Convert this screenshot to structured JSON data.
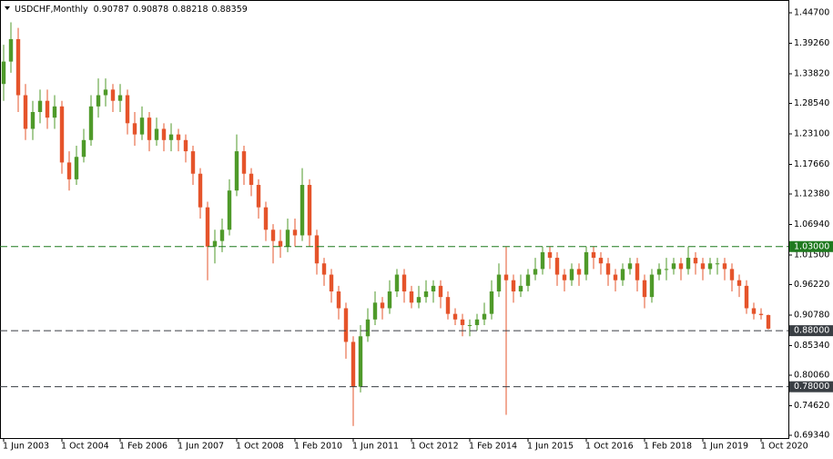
{
  "chart_data": {
    "type": "candlestick",
    "header": {
      "symbol": "USDCHF,Monthly",
      "open": 0.90787,
      "high": 0.90878,
      "low": 0.88218,
      "close": 0.88359
    },
    "up_color": "#4f9a2a",
    "down_color": "#e5542b",
    "xlim": [
      -1,
      215.5
    ],
    "xticks": [
      {
        "value": 0,
        "label": "1 Jun 2003"
      },
      {
        "value": 16,
        "label": "1 Oct 2004"
      },
      {
        "value": 32,
        "label": "1 Feb 2006"
      },
      {
        "value": 48,
        "label": "1 Jun 2007"
      },
      {
        "value": 64,
        "label": "1 Oct 2008"
      },
      {
        "value": 80,
        "label": "1 Feb 2010"
      },
      {
        "value": 96,
        "label": "1 Jun 2011"
      },
      {
        "value": 112,
        "label": "1 Oct 2012"
      },
      {
        "value": 128,
        "label": "1 Feb 2014"
      },
      {
        "value": 144,
        "label": "1 Jun 2015"
      },
      {
        "value": 160,
        "label": "1 Oct 2016"
      },
      {
        "value": 176,
        "label": "1 Feb 2018"
      },
      {
        "value": 192,
        "label": "1 Jun 2019"
      },
      {
        "value": 208,
        "label": "1 Oct 2020"
      }
    ],
    "ylim": [
      0.6885,
      1.4698
    ],
    "yticks": [
      {
        "value": 1.447,
        "label": "1.44700"
      },
      {
        "value": 1.3926,
        "label": "1.39260"
      },
      {
        "value": 1.3382,
        "label": "1.33820"
      },
      {
        "value": 1.2854,
        "label": "1.28540"
      },
      {
        "value": 1.231,
        "label": "1.23100"
      },
      {
        "value": 1.1766,
        "label": "1.17660"
      },
      {
        "value": 1.1238,
        "label": "1.12380"
      },
      {
        "value": 1.0694,
        "label": "1.06940"
      },
      {
        "value": 1.015,
        "label": "1.01500"
      },
      {
        "value": 0.9622,
        "label": "0.96220"
      },
      {
        "value": 0.9078,
        "label": "0.90780"
      },
      {
        "value": 0.8534,
        "label": "0.85340"
      },
      {
        "value": 0.8006,
        "label": "0.80060"
      },
      {
        "value": 0.7462,
        "label": "0.74620"
      },
      {
        "value": 0.6934,
        "label": "0.69340"
      }
    ],
    "levels": [
      {
        "value": 1.03,
        "label": "1.03000",
        "color": "#1f7a1f"
      },
      {
        "value": 0.88,
        "label": "0.88000",
        "color": "#3a3f44"
      },
      {
        "value": 0.78,
        "label": "0.78000",
        "color": "#3a3f44"
      }
    ],
    "candles": {
      "x": [
        0,
        2,
        4,
        6,
        8,
        10,
        12,
        14,
        16,
        18,
        20,
        22,
        24,
        26,
        28,
        30,
        32,
        34,
        36,
        38,
        40,
        42,
        44,
        46,
        48,
        50,
        52,
        54,
        56,
        58,
        60,
        62,
        64,
        66,
        68,
        70,
        72,
        74,
        76,
        78,
        80,
        82,
        84,
        86,
        88,
        90,
        92,
        94,
        96,
        98,
        100,
        102,
        104,
        106,
        108,
        110,
        112,
        114,
        116,
        118,
        120,
        122,
        124,
        126,
        128,
        130,
        132,
        134,
        136,
        138,
        140,
        142,
        144,
        146,
        148,
        150,
        152,
        154,
        156,
        158,
        160,
        162,
        164,
        166,
        168,
        170,
        172,
        174,
        176,
        178,
        180,
        182,
        184,
        186,
        188,
        190,
        192,
        194,
        196,
        198,
        200,
        202,
        204,
        206,
        208,
        210
      ],
      "open": [
        1.32,
        1.36,
        1.4,
        1.3,
        1.24,
        1.27,
        1.29,
        1.26,
        1.28,
        1.18,
        1.15,
        1.19,
        1.22,
        1.28,
        1.3,
        1.31,
        1.29,
        1.3,
        1.25,
        1.23,
        1.26,
        1.22,
        1.24,
        1.22,
        1.23,
        1.22,
        1.2,
        1.16,
        1.1,
        1.03,
        1.04,
        1.06,
        1.13,
        1.2,
        1.16,
        1.14,
        1.1,
        1.06,
        1.04,
        1.03,
        1.06,
        1.05,
        1.14,
        1.05,
        1.0,
        0.98,
        0.95,
        0.92,
        0.86,
        0.78,
        0.87,
        0.9,
        0.93,
        0.92,
        0.95,
        0.98,
        0.95,
        0.93,
        0.94,
        0.95,
        0.96,
        0.94,
        0.91,
        0.9,
        0.89,
        0.89,
        0.9,
        0.91,
        0.95,
        0.98,
        0.97,
        0.95,
        0.96,
        0.98,
        0.99,
        1.02,
        1.01,
        0.98,
        0.97,
        0.99,
        0.98,
        1.02,
        1.01,
        1.0,
        0.98,
        0.97,
        0.99,
        1.0,
        0.97,
        0.94,
        0.98,
        0.99,
        0.99,
        1.0,
        0.99,
        1.01,
        1.0,
        0.99,
        1.0,
        1.0,
        0.99,
        0.97,
        0.96,
        0.92,
        0.91,
        0.90787
      ],
      "high": [
        1.39,
        1.43,
        1.42,
        1.32,
        1.29,
        1.31,
        1.31,
        1.3,
        1.29,
        1.2,
        1.21,
        1.24,
        1.3,
        1.33,
        1.33,
        1.32,
        1.32,
        1.31,
        1.27,
        1.28,
        1.27,
        1.26,
        1.25,
        1.25,
        1.24,
        1.23,
        1.21,
        1.17,
        1.11,
        1.06,
        1.08,
        1.15,
        1.23,
        1.21,
        1.17,
        1.15,
        1.11,
        1.07,
        1.06,
        1.08,
        1.08,
        1.17,
        1.15,
        1.06,
        1.01,
        0.99,
        0.96,
        0.93,
        0.87,
        0.89,
        0.92,
        0.95,
        0.94,
        0.97,
        0.99,
        0.99,
        0.96,
        0.96,
        0.97,
        0.97,
        0.97,
        0.95,
        0.92,
        0.91,
        0.9,
        0.91,
        0.93,
        0.97,
        1.0,
        1.03,
        0.98,
        0.98,
        0.99,
        1.01,
        1.03,
        1.03,
        1.02,
        0.99,
        1.0,
        1.0,
        1.03,
        1.03,
        1.02,
        1.01,
        0.99,
        1.0,
        1.01,
        1.01,
        0.98,
        0.99,
        1.0,
        1.01,
        1.01,
        1.01,
        1.03,
        1.02,
        1.01,
        1.01,
        1.01,
        1.01,
        1.0,
        0.98,
        0.97,
        0.93,
        0.92,
        0.90878
      ],
      "low": [
        1.29,
        1.34,
        1.27,
        1.22,
        1.22,
        1.25,
        1.24,
        1.24,
        1.16,
        1.13,
        1.14,
        1.18,
        1.21,
        1.26,
        1.28,
        1.27,
        1.27,
        1.23,
        1.21,
        1.22,
        1.2,
        1.21,
        1.2,
        1.2,
        1.2,
        1.18,
        1.14,
        1.08,
        0.97,
        1.0,
        1.02,
        1.05,
        1.12,
        1.14,
        1.12,
        1.08,
        1.04,
        1.0,
        1.01,
        1.02,
        1.03,
        1.04,
        1.03,
        0.98,
        0.96,
        0.93,
        0.9,
        0.83,
        0.71,
        0.77,
        0.86,
        0.89,
        0.9,
        0.91,
        0.94,
        0.93,
        0.92,
        0.92,
        0.93,
        0.93,
        0.92,
        0.9,
        0.89,
        0.87,
        0.87,
        0.88,
        0.89,
        0.9,
        0.94,
        0.73,
        0.93,
        0.94,
        0.95,
        0.97,
        0.98,
        0.99,
        0.96,
        0.95,
        0.96,
        0.96,
        0.97,
        0.99,
        0.98,
        0.96,
        0.95,
        0.96,
        0.98,
        0.95,
        0.92,
        0.93,
        0.97,
        0.97,
        0.98,
        0.97,
        0.98,
        0.98,
        0.97,
        0.98,
        0.98,
        0.97,
        0.95,
        0.94,
        0.91,
        0.9,
        0.9,
        0.88218
      ],
      "close": [
        1.36,
        1.4,
        1.3,
        1.24,
        1.27,
        1.29,
        1.26,
        1.28,
        1.18,
        1.15,
        1.19,
        1.22,
        1.28,
        1.3,
        1.31,
        1.29,
        1.3,
        1.25,
        1.23,
        1.26,
        1.22,
        1.24,
        1.22,
        1.23,
        1.22,
        1.2,
        1.16,
        1.1,
        1.03,
        1.04,
        1.06,
        1.13,
        1.2,
        1.16,
        1.14,
        1.1,
        1.06,
        1.04,
        1.03,
        1.06,
        1.05,
        1.14,
        1.05,
        1.0,
        0.98,
        0.95,
        0.92,
        0.86,
        0.78,
        0.87,
        0.9,
        0.93,
        0.92,
        0.95,
        0.98,
        0.95,
        0.93,
        0.94,
        0.95,
        0.96,
        0.94,
        0.91,
        0.9,
        0.89,
        0.89,
        0.9,
        0.91,
        0.95,
        0.98,
        0.97,
        0.95,
        0.96,
        0.98,
        0.99,
        1.02,
        1.01,
        0.98,
        0.97,
        0.99,
        0.98,
        1.02,
        1.01,
        1.0,
        0.98,
        0.97,
        0.99,
        1.0,
        0.97,
        0.94,
        0.98,
        0.99,
        0.99,
        1.0,
        0.99,
        1.01,
        1.0,
        0.99,
        1.0,
        1.0,
        0.99,
        0.97,
        0.96,
        0.92,
        0.91,
        0.90787,
        0.88359
      ]
    }
  }
}
